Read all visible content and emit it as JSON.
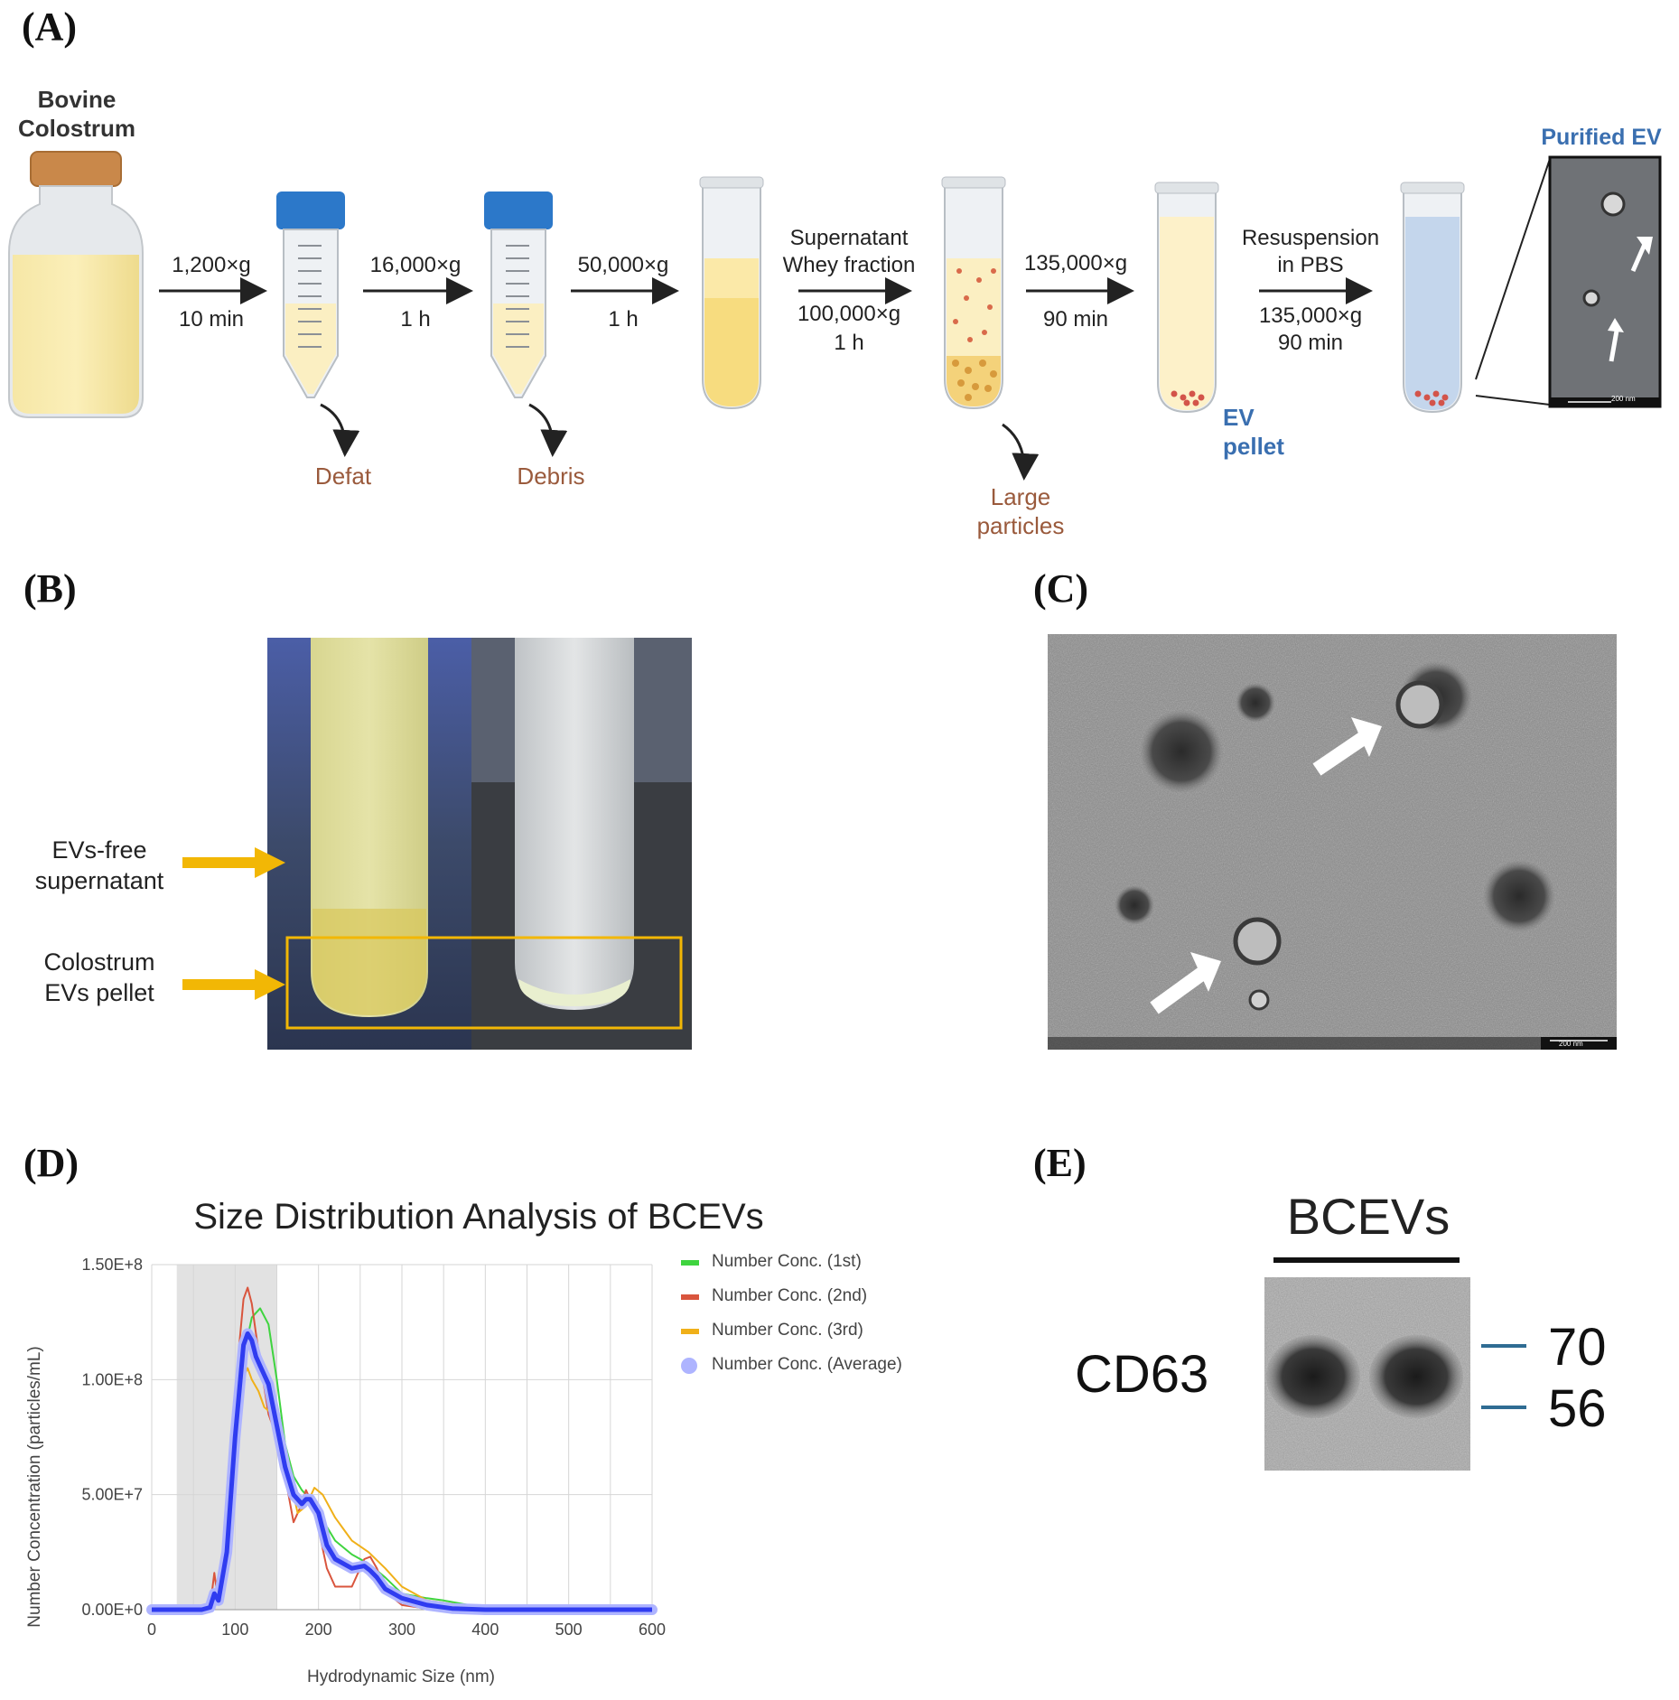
{
  "panelA": {
    "letter": "(A)",
    "bovine_label": [
      "Bovine",
      "Colostrum"
    ],
    "steps": [
      {
        "speed": "1,200×g",
        "time": "10 min"
      },
      {
        "speed": "16,000×g",
        "time": "1 h"
      },
      {
        "speed": "50,000×g",
        "time": "1 h"
      },
      {
        "top1": "Supernatant",
        "top2": "Whey fraction",
        "speed": "100,000×g",
        "time": "1 h"
      },
      {
        "speed": "135,000×g",
        "time": "90 min"
      },
      {
        "top1": "Resuspension",
        "top2": "in PBS",
        "speed": "135,000×g",
        "time": "90 min"
      }
    ],
    "waste_defat": "Defat",
    "waste_debris": "Debris",
    "waste_large": [
      "Large",
      "particles"
    ],
    "ev_pellet": [
      "EV",
      "pellet"
    ],
    "purified_ev": "Purified EV",
    "scale_bar": "200 nm"
  },
  "panelB": {
    "letter": "(B)",
    "label_supernatant": [
      "EVs-free",
      "supernatant"
    ],
    "label_pellet": [
      "Colostrum",
      "EVs pellet"
    ],
    "arrow_color": "#f2b705"
  },
  "panelC": {
    "letter": "(C)",
    "scale_bar": "200 nm"
  },
  "panelD": {
    "letter": "(D)"
  },
  "panelE": {
    "letter": "(E)",
    "title": "BCEVs",
    "protein": "CD63",
    "marker_high": "70",
    "marker_low": "56",
    "marker_color": "#2f6c93"
  },
  "chart_data": {
    "type": "line",
    "title": "Size Distribution Analysis of BCEVs",
    "xlabel": "Hydrodynamic Size (nm)",
    "ylabel": "Number Concentration (particles/mL)",
    "xlim": [
      0,
      600
    ],
    "ylim": [
      0,
      150000000
    ],
    "xticks": [
      0,
      100,
      200,
      300,
      400,
      500,
      600
    ],
    "yticks": [
      0,
      50000000,
      100000000,
      150000000
    ],
    "ytick_labels": [
      "0.00E+0",
      "5.00E+7",
      "1.00E+8",
      "1.50E+8"
    ],
    "xtick_labels": [
      "0",
      "100",
      "200",
      "300",
      "400",
      "500",
      "600"
    ],
    "shaded_region": [
      30,
      150
    ],
    "grid": true,
    "legend_position": "right",
    "series": [
      {
        "name": "Number Conc. (1st)",
        "color": "#3fd43f",
        "x": [
          0,
          50,
          70,
          80,
          90,
          100,
          110,
          120,
          130,
          140,
          150,
          160,
          170,
          180,
          190,
          200,
          220,
          240,
          260,
          280,
          300,
          330,
          350,
          380,
          420,
          500,
          600
        ],
        "y": [
          0,
          0,
          300000,
          3000000,
          25000000,
          70000000,
          110000000,
          127000000,
          131000000,
          124000000,
          100000000,
          72000000,
          58000000,
          52000000,
          48000000,
          42000000,
          30000000,
          24000000,
          20000000,
          14000000,
          7000000,
          5000000,
          4000000,
          2000000,
          500000,
          0,
          0
        ]
      },
      {
        "name": "Number Conc. (2nd)",
        "color": "#d9553d",
        "x": [
          0,
          60,
          70,
          75,
          80,
          90,
          100,
          105,
          110,
          115,
          120,
          125,
          130,
          140,
          150,
          160,
          170,
          180,
          185,
          190,
          200,
          210,
          220,
          240,
          255,
          262,
          270,
          280,
          300,
          330,
          400,
          600
        ],
        "y": [
          0,
          0,
          1000000,
          16000000,
          3000000,
          20000000,
          80000000,
          115000000,
          135000000,
          140000000,
          133000000,
          120000000,
          108000000,
          85000000,
          75000000,
          58000000,
          38000000,
          46000000,
          52000000,
          48000000,
          35000000,
          18000000,
          10000000,
          10000000,
          22000000,
          23000000,
          18000000,
          8000000,
          2000000,
          500000,
          0,
          0
        ]
      },
      {
        "name": "Number Conc. (3rd)",
        "color": "#f0b019",
        "x": [
          0,
          60,
          70,
          80,
          90,
          100,
          108,
          115,
          120,
          128,
          135,
          145,
          155,
          165,
          175,
          185,
          195,
          205,
          220,
          240,
          260,
          280,
          300,
          330,
          400,
          600
        ],
        "y": [
          0,
          0,
          1000000,
          5000000,
          25000000,
          70000000,
          100000000,
          105000000,
          100000000,
          95000000,
          88000000,
          85000000,
          78000000,
          58000000,
          42000000,
          45000000,
          53000000,
          50000000,
          40000000,
          30000000,
          25000000,
          18000000,
          10000000,
          4000000,
          500000,
          0
        ]
      },
      {
        "name": "Number Conc. (Average)",
        "color": "#2f3cf0",
        "marker_color": "#aeb4ff",
        "x": [
          0,
          60,
          70,
          75,
          80,
          90,
          100,
          110,
          115,
          120,
          125,
          130,
          140,
          150,
          160,
          170,
          180,
          185,
          190,
          200,
          210,
          220,
          240,
          255,
          262,
          270,
          280,
          300,
          330,
          360,
          400,
          600
        ],
        "y": [
          0,
          0,
          1000000,
          7000000,
          4000000,
          25000000,
          75000000,
          115000000,
          120000000,
          117000000,
          110000000,
          106000000,
          98000000,
          80000000,
          62000000,
          50000000,
          46000000,
          48000000,
          48000000,
          42000000,
          28000000,
          22000000,
          18000000,
          19000000,
          17000000,
          14000000,
          9000000,
          5000000,
          2000000,
          500000,
          0,
          0
        ]
      }
    ]
  }
}
